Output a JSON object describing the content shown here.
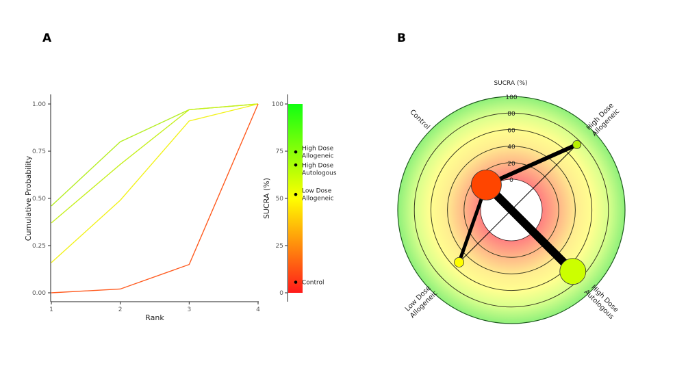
{
  "panels": {
    "a": "A",
    "b": "B"
  },
  "chart_data": [
    {
      "type": "line",
      "xlabel": "Rank",
      "ylabel": "Cumulative Probability",
      "x": [
        1,
        2,
        3,
        4
      ],
      "xlim": [
        1,
        4
      ],
      "ylim": [
        0,
        1
      ],
      "xticks": [
        "1",
        "2",
        "3",
        "4"
      ],
      "yticks": [
        "0.00",
        "0.25",
        "0.50",
        "0.75",
        "1.00"
      ],
      "grid": false,
      "series": [
        {
          "treatment": "High Dose Allogeneic",
          "color": "#b5ee22",
          "values": [
            0.46,
            0.8,
            0.97,
            1.0
          ]
        },
        {
          "treatment": "High Dose Autologous",
          "color": "#c6f01e",
          "values": [
            0.37,
            0.68,
            0.97,
            1.0
          ]
        },
        {
          "treatment": "Low Dose Allogeneic",
          "color": "#f2f21a",
          "values": [
            0.16,
            0.49,
            0.91,
            1.0
          ]
        },
        {
          "treatment": "Control",
          "color": "#ff5a1e",
          "values": [
            0.0,
            0.02,
            0.15,
            1.0
          ]
        }
      ],
      "colorbar": {
        "label": "SUCRA (%)",
        "ticks": [
          "0",
          "25",
          "50",
          "75",
          "100"
        ],
        "range": [
          0,
          100
        ],
        "colors": [
          "#ff0000",
          "#ffff00",
          "#00ff00"
        ],
        "points": [
          {
            "label_line1": "High Dose",
            "label_line2": "Allogeneic",
            "sucra": 74.6
          },
          {
            "label_line1": "High Dose",
            "label_line2": "Autologous",
            "sucra": 67.7
          },
          {
            "label_line1": "Low Dose",
            "label_line2": "Allogeneic",
            "sucra": 52.1
          },
          {
            "label_line1": "Control",
            "label_line2": "",
            "sucra": 5.6
          }
        ]
      }
    },
    {
      "type": "radial-network",
      "title": "SUCRA (%)",
      "rings": [
        "0",
        "20",
        "40",
        "60",
        "80",
        "100"
      ],
      "range": [
        0,
        100
      ],
      "nodes": [
        {
          "id": "control",
          "label_line1": "Control",
          "label_line2": "",
          "sucra": 5.6,
          "color": "#ff4500",
          "size": 22
        },
        {
          "id": "hd_allo",
          "label_line1": "High Dose",
          "label_line2": "Allogeneic",
          "sucra": 74.6,
          "color": "#b8f000",
          "size": 6
        },
        {
          "id": "hd_auto",
          "label_line1": "High Dose",
          "label_line2": "Autologous",
          "sucra": 67.7,
          "color": "#ccff00",
          "size": 19
        },
        {
          "id": "ld_allo",
          "label_line1": "Low Dose",
          "label_line2": "Allogeneic",
          "sucra": 52.1,
          "color": "#ffff00",
          "size": 7
        }
      ],
      "edges": [
        {
          "from": "control",
          "to": "hd_auto",
          "weight": 12
        },
        {
          "from": "control",
          "to": "hd_allo",
          "weight": 6
        },
        {
          "from": "control",
          "to": "ld_allo",
          "weight": 5
        },
        {
          "from": "hd_allo",
          "to": "ld_allo",
          "weight": 1
        }
      ]
    }
  ]
}
